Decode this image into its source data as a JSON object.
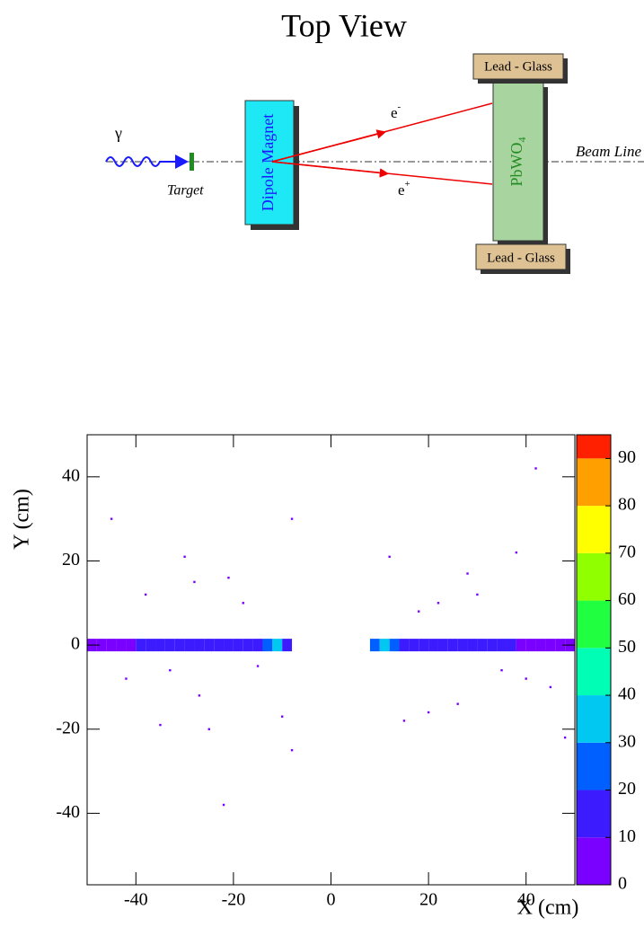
{
  "diagram": {
    "title": "Top View",
    "gamma": "γ",
    "target": "Target",
    "magnet": "Dipole Magnet",
    "electron": "e",
    "electron_charge": "-",
    "positron": "e",
    "positron_charge": "+",
    "detector": "PbWO",
    "detector_index": "4",
    "lead_glass_top": "Lead - Glass",
    "lead_glass_bottom": "Lead - Glass",
    "beam_line": "Beam Line"
  },
  "chart_data": {
    "type": "heatmap",
    "xlabel": "X (cm)",
    "ylabel": "Y (cm)",
    "xlim": [
      -50,
      50
    ],
    "ylim": [
      -57,
      50
    ],
    "xticks": [
      -40,
      -20,
      0,
      20,
      40
    ],
    "yticks": [
      -40,
      -20,
      0,
      20,
      40
    ],
    "cells": {
      "x": [
        -49,
        -47,
        -45,
        -43,
        -41,
        -39,
        -37,
        -35,
        -33,
        -31,
        -29,
        -27,
        -25,
        -23,
        -21,
        -19,
        -17,
        -15,
        -13,
        -11,
        -9,
        9,
        11,
        13,
        15,
        17,
        19,
        21,
        23,
        25,
        27,
        29,
        31,
        33,
        35,
        37,
        39,
        41,
        43,
        45,
        47,
        49,
        -45,
        -38,
        -33,
        -30,
        -28,
        -25,
        -22,
        -18,
        -42,
        -35,
        -27,
        -15,
        -21,
        -10,
        -8,
        12,
        15,
        18,
        22,
        26,
        30,
        35,
        38,
        42,
        45,
        20,
        28,
        40,
        48,
        -8
      ],
      "y": [
        0,
        0,
        0,
        0,
        0,
        0,
        0,
        0,
        0,
        0,
        0,
        0,
        0,
        0,
        0,
        0,
        0,
        0,
        0,
        0,
        0,
        0,
        0,
        0,
        0,
        0,
        0,
        0,
        0,
        0,
        0,
        0,
        0,
        0,
        0,
        0,
        0,
        0,
        0,
        0,
        0,
        0,
        30,
        12,
        -6,
        21,
        15,
        -20,
        -38,
        10,
        -8,
        -19,
        -12,
        -5,
        16,
        -17,
        -25,
        21,
        -18,
        8,
        10,
        -14,
        12,
        -6,
        22,
        42,
        -10,
        -16,
        17,
        -8,
        -22,
        30
      ],
      "values": [
        6,
        8,
        8,
        9,
        9,
        10,
        10,
        11,
        11,
        12,
        12,
        12,
        13,
        13,
        14,
        15,
        16,
        18,
        24,
        32,
        14,
        22,
        34,
        26,
        18,
        15,
        14,
        13,
        13,
        12,
        12,
        11,
        11,
        10,
        10,
        10,
        9,
        9,
        9,
        8,
        8,
        7,
        1,
        1,
        1,
        1,
        1,
        1,
        1,
        1,
        1,
        1,
        1,
        1,
        1,
        1,
        1,
        1,
        1,
        1,
        1,
        1,
        1,
        1,
        1,
        1,
        1,
        1,
        1,
        1,
        1,
        1
      ]
    },
    "colorbar": {
      "lim": [
        0,
        95
      ],
      "ticks": [
        0,
        10,
        20,
        30,
        40,
        50,
        60,
        70,
        80,
        90
      ],
      "colors": [
        "#7a00ff",
        "#3c1cff",
        "#0060ff",
        "#00c8f0",
        "#00ffb4",
        "#20ff40",
        "#90ff00",
        "#ffff00",
        "#ffa000",
        "#ff2000"
      ]
    }
  }
}
